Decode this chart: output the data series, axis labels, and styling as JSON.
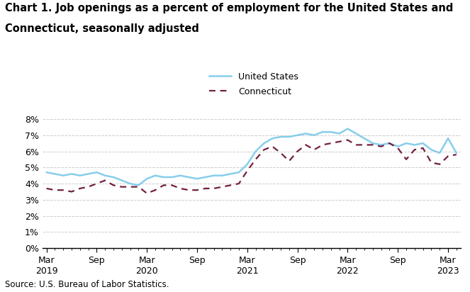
{
  "title_line1": "Chart 1. Job openings as a percent of employment for the United States and",
  "title_line2": "Connecticut, seasonally adjusted",
  "source": "Source: U.S. Bureau of Labor Statistics.",
  "us_data": [
    4.7,
    4.6,
    4.5,
    4.6,
    4.5,
    4.6,
    4.7,
    4.5,
    4.4,
    4.2,
    4.0,
    3.9,
    4.3,
    4.5,
    4.4,
    4.4,
    4.5,
    4.4,
    4.3,
    4.4,
    4.5,
    4.5,
    4.6,
    4.7,
    5.2,
    6.0,
    6.5,
    6.8,
    6.9,
    6.9,
    7.0,
    7.1,
    7.0,
    7.2,
    7.2,
    7.1,
    7.4,
    7.1,
    6.8,
    6.5,
    6.4,
    6.5,
    6.3,
    6.5,
    6.4,
    6.5,
    6.1,
    5.9,
    6.8,
    5.9
  ],
  "ct_data": [
    3.7,
    3.6,
    3.6,
    3.5,
    3.7,
    3.8,
    4.0,
    4.2,
    3.9,
    3.8,
    3.8,
    3.8,
    3.4,
    3.6,
    3.9,
    3.9,
    3.7,
    3.6,
    3.6,
    3.7,
    3.7,
    3.8,
    3.9,
    4.0,
    4.8,
    5.5,
    6.1,
    6.3,
    5.9,
    5.4,
    6.0,
    6.4,
    6.1,
    6.4,
    6.5,
    6.6,
    6.7,
    6.4,
    6.4,
    6.4,
    6.3,
    6.5,
    6.2,
    5.5,
    6.1,
    6.2,
    5.3,
    5.2,
    5.7,
    5.8
  ],
  "n_points": 50,
  "x_tick_positions": [
    0,
    6,
    12,
    18,
    24,
    30,
    36,
    42,
    48
  ],
  "x_tick_labels": [
    "Mar\n2019",
    "Sep",
    "Mar\n2020",
    "Sep",
    "Mar\n2021",
    "Sep",
    "Mar\n2022",
    "Sep",
    "Mar\n2023"
  ],
  "ylim": [
    0,
    8.5
  ],
  "yticks": [
    0,
    1,
    2,
    3,
    4,
    5,
    6,
    7,
    8
  ],
  "ytick_labels": [
    "0%",
    "1%",
    "2%",
    "3%",
    "4%",
    "5%",
    "6%",
    "7%",
    "8%"
  ],
  "us_color": "#87CEEB",
  "ct_color": "#722040",
  "us_label": "United States",
  "ct_label": "Connecticut",
  "grid_color": "#cccccc",
  "bg_color": "#ffffff",
  "title_fontsize": 10.5,
  "tick_fontsize": 9,
  "source_fontsize": 8.5,
  "legend_fontsize": 9
}
